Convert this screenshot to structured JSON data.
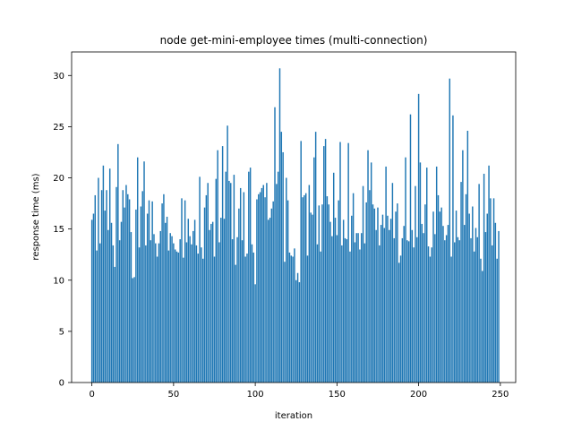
{
  "chart_data": {
    "type": "bar",
    "title": "node get-mini-employee times (multi-connection)",
    "xlabel": "iteration",
    "ylabel": "response time (ms)",
    "xlim": [
      -12.4,
      259.4
    ],
    "ylim": [
      0,
      32.3
    ],
    "x_ticks": [
      0,
      50,
      100,
      150,
      200,
      250
    ],
    "y_ticks": [
      0,
      5,
      10,
      15,
      20,
      25,
      30
    ],
    "grid": false,
    "bar_color": "#1f77b4",
    "x_start": 0,
    "values": [
      15.9,
      16.5,
      18.3,
      12.9,
      20.0,
      13.6,
      18.8,
      21.2,
      16.8,
      18.8,
      14.9,
      20.9,
      15.6,
      13.4,
      11.3,
      19.1,
      23.3,
      13.9,
      15.7,
      18.8,
      17.1,
      19.3,
      18.4,
      17.9,
      14.7,
      10.2,
      10.3,
      16.9,
      22.0,
      13.2,
      17.2,
      18.7,
      21.6,
      13.4,
      16.5,
      17.8,
      13.9,
      17.7,
      14.5,
      13.6,
      12.3,
      13.6,
      14.8,
      17.5,
      18.4,
      15.6,
      16.2,
      12.9,
      14.6,
      14.3,
      13.6,
      13.0,
      12.8,
      12.7,
      14.0,
      18.0,
      12.2,
      17.8,
      13.7,
      16.0,
      14.3,
      13.5,
      14.8,
      15.9,
      13.4,
      12.6,
      20.1,
      13.2,
      12.1,
      17.1,
      18.3,
      19.5,
      14.9,
      15.5,
      15.7,
      12.3,
      19.9,
      22.7,
      13.7,
      16.1,
      23.1,
      16.0,
      20.6,
      25.1,
      19.7,
      19.5,
      14.0,
      20.3,
      11.5,
      14.2,
      17.0,
      19.0,
      13.9,
      18.6,
      12.3,
      12.6,
      20.6,
      21.0,
      13.5,
      12.7,
      9.6,
      17.9,
      18.4,
      18.6,
      19.0,
      19.3,
      18.1,
      19.5,
      15.9,
      16.1,
      17.0,
      17.7,
      26.9,
      19.4,
      20.6,
      30.7,
      24.5,
      22.5,
      11.8,
      20.0,
      17.8,
      12.7,
      12.4,
      12.3,
      13.1,
      10.0,
      10.7,
      9.8,
      23.6,
      18.1,
      18.3,
      18.5,
      12.4,
      19.3,
      16.6,
      16.4,
      22.0,
      24.5,
      13.5,
      17.3,
      12.8,
      17.4,
      23.1,
      23.8,
      18.2,
      17.4,
      15.7,
      14.3,
      20.5,
      16.1,
      14.4,
      17.8,
      23.5,
      13.4,
      15.9,
      14.1,
      14.0,
      23.4,
      12.8,
      16.3,
      18.5,
      13.7,
      14.6,
      14.6,
      13.0,
      14.6,
      19.2,
      13.6,
      17.6,
      22.7,
      18.8,
      21.5,
      17.4,
      17.0,
      14.9,
      17.1,
      13.4,
      15.4,
      16.4,
      15.1,
      21.1,
      16.3,
      14.9,
      16.0,
      19.5,
      14.1,
      16.7,
      17.5,
      11.7,
      12.4,
      14.1,
      15.3,
      22.0,
      13.9,
      13.8,
      26.2,
      14.9,
      13.2,
      19.2,
      14.2,
      28.2,
      21.5,
      15.5,
      14.6,
      17.4,
      21.0,
      13.3,
      12.3,
      13.2,
      16.7,
      14.5,
      21.1,
      18.3,
      16.7,
      17.1,
      15.3,
      13.9,
      14.4,
      15.4,
      29.7,
      12.3,
      26.1,
      13.7,
      16.8,
      14.2,
      13.9,
      19.6,
      22.7,
      15.4,
      18.4,
      24.6,
      16.5,
      14.1,
      17.2,
      12.8,
      15.1,
      14.2,
      19.4,
      12.1,
      10.9,
      20.4,
      14.7,
      16.5,
      21.2,
      18.0,
      13.4,
      18.0,
      15.6,
      12.1,
      14.8
    ]
  }
}
